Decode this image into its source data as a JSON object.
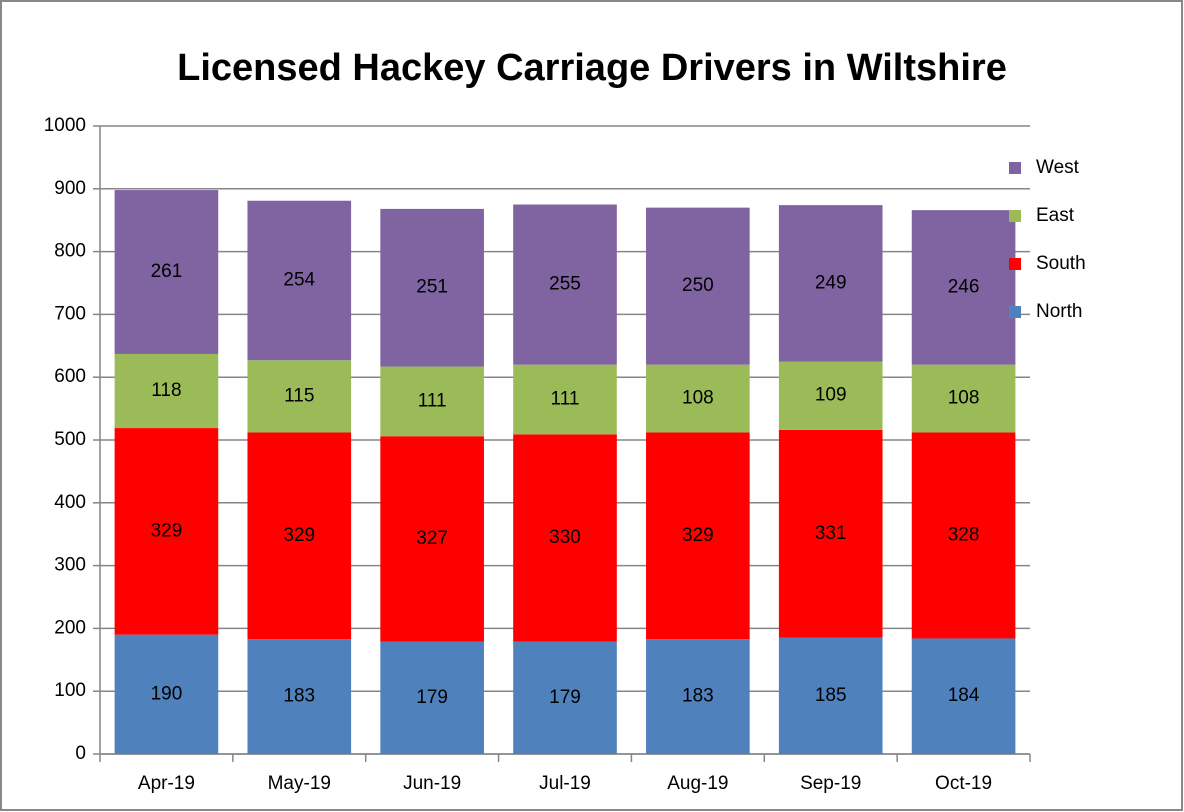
{
  "chart_data": {
    "type": "stacked_bar",
    "title": "Licensed Hackey Carriage Drivers in Wiltshire",
    "categories": [
      "Apr-19",
      "May-19",
      "Jun-19",
      "Jul-19",
      "Aug-19",
      "Sep-19",
      "Oct-19"
    ],
    "series": [
      {
        "name": "North",
        "color": "#4f81bd",
        "values": [
          190,
          183,
          179,
          179,
          183,
          185,
          184
        ]
      },
      {
        "name": "South",
        "color": "#ff0000",
        "values": [
          329,
          329,
          327,
          330,
          329,
          331,
          328
        ]
      },
      {
        "name": "East",
        "color": "#9bbb59",
        "values": [
          118,
          115,
          111,
          111,
          108,
          109,
          108
        ]
      },
      {
        "name": "West",
        "color": "#8064a2",
        "values": [
          261,
          254,
          251,
          255,
          250,
          249,
          246
        ]
      }
    ],
    "ylim": [
      0,
      1000
    ],
    "yticks": [
      0,
      100,
      200,
      300,
      400,
      500,
      600,
      700,
      800,
      900,
      1000
    ],
    "grid": true,
    "legend": "right"
  }
}
